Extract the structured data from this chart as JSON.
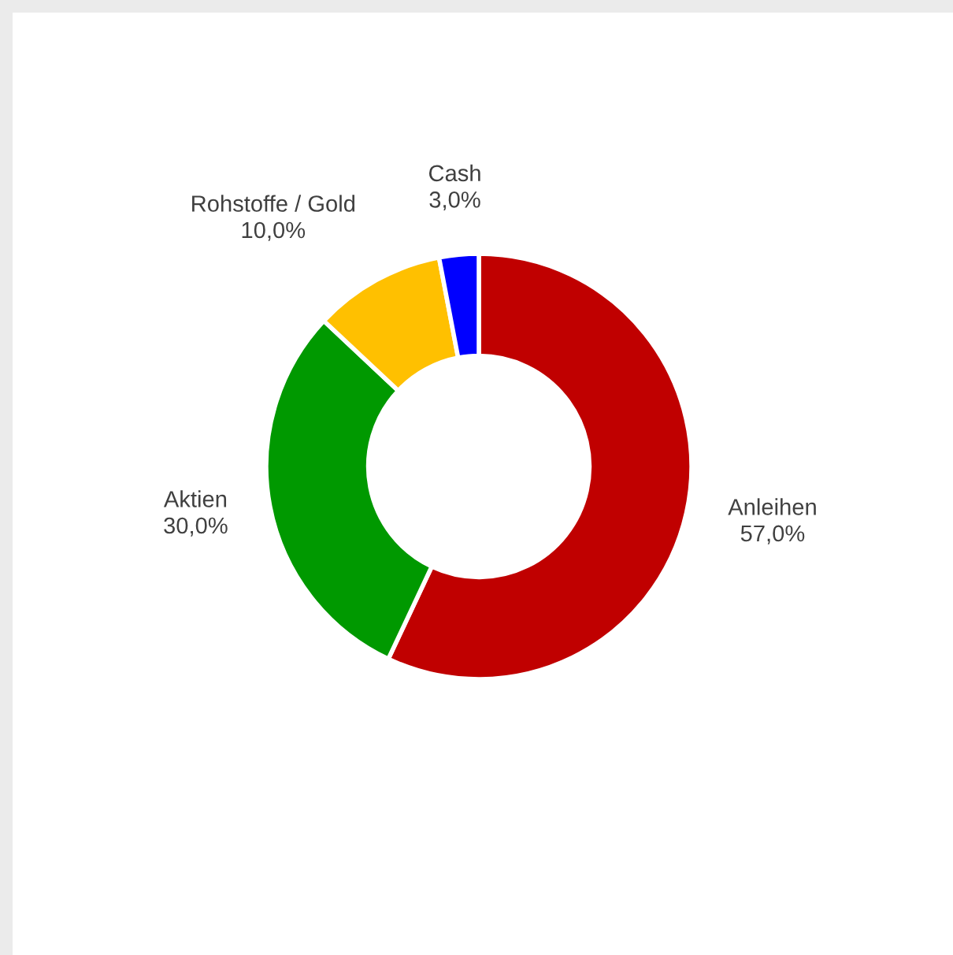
{
  "chart_data": {
    "type": "donut",
    "categories": [
      "Anleihen",
      "Aktien",
      "Rohstoffe / Gold",
      "Cash"
    ],
    "values": [
      57,
      30,
      10,
      3
    ],
    "value_labels": [
      "57,0%",
      "30,0%",
      "10,0%",
      "3,0%"
    ],
    "colors": [
      "#c00000",
      "#009900",
      "#ffc000",
      "#0000ff"
    ],
    "legend": false
  }
}
